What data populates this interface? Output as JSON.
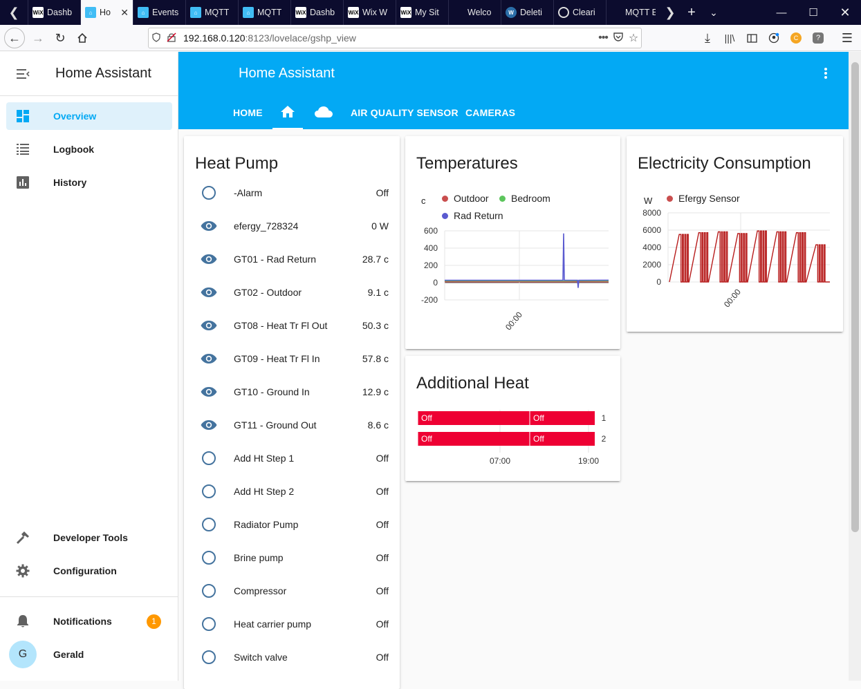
{
  "browser": {
    "tabs": [
      {
        "label": "Dashb",
        "icon": "wix-icon"
      },
      {
        "label": "Ho",
        "icon": "home-assistant-icon",
        "active": true
      },
      {
        "label": "Events",
        "icon": "home-assistant-icon"
      },
      {
        "label": "MQTT",
        "icon": "home-assistant-icon"
      },
      {
        "label": "MQTT",
        "icon": "home-assistant-icon"
      },
      {
        "label": "Dashb",
        "icon": "wix-icon"
      },
      {
        "label": "Wix W",
        "icon": "wix-icon"
      },
      {
        "label": "My Sit",
        "icon": "wix-icon"
      },
      {
        "label": "Welco",
        "icon": "blank-icon"
      },
      {
        "label": "Deleti",
        "icon": "wordpress-icon"
      },
      {
        "label": "Cleari",
        "icon": "browser-icon"
      },
      {
        "label": "MQTT Expl",
        "icon": "blank-icon"
      }
    ],
    "url": {
      "host": "192.168.0.120",
      "rest": ":8123/lovelace/gshp_view"
    }
  },
  "sidebar": {
    "title": "Home Assistant",
    "items": [
      {
        "label": "Overview",
        "icon": "dashboard-icon"
      },
      {
        "label": "Logbook",
        "icon": "logbook-icon"
      },
      {
        "label": "History",
        "icon": "history-icon"
      },
      {
        "label": "Developer Tools",
        "icon": "hammer-icon"
      },
      {
        "label": "Configuration",
        "icon": "gear-icon"
      },
      {
        "label": "Notifications",
        "icon": "bell-icon",
        "badge": "1"
      },
      {
        "label": "Gerald",
        "icon": "avatar",
        "initial": "G"
      }
    ]
  },
  "header": {
    "title": "Home Assistant",
    "tabs": [
      {
        "label": "HOME"
      },
      {
        "label": "",
        "icon": "home-icon",
        "active": true
      },
      {
        "label": "",
        "icon": "cloud-icon"
      },
      {
        "label": "AIR QUALITY SENSOR"
      },
      {
        "label": "CAMERAS"
      }
    ]
  },
  "heat_pump": {
    "title": "Heat Pump",
    "entities": [
      {
        "name": "-Alarm",
        "state": "Off",
        "icon": "circle-outline-icon"
      },
      {
        "name": "efergy_728324",
        "state": "0 W",
        "icon": "eye-icon"
      },
      {
        "name": "GT01 - Rad Return",
        "state": "28.7 c",
        "icon": "eye-icon"
      },
      {
        "name": "GT02 - Outdoor",
        "state": "9.1 c",
        "icon": "eye-icon"
      },
      {
        "name": "GT08 - Heat Tr Fl Out",
        "state": "50.3 c",
        "icon": "eye-icon"
      },
      {
        "name": "GT09 - Heat Tr Fl In",
        "state": "57.8 c",
        "icon": "eye-icon"
      },
      {
        "name": "GT10 - Ground In",
        "state": "12.9 c",
        "icon": "eye-icon"
      },
      {
        "name": "GT11 - Ground Out",
        "state": "8.6 c",
        "icon": "eye-icon"
      },
      {
        "name": "Add Ht Step 1",
        "state": "Off",
        "icon": "circle-outline-icon"
      },
      {
        "name": "Add Ht Step 2",
        "state": "Off",
        "icon": "circle-outline-icon"
      },
      {
        "name": "Radiator Pump",
        "state": "Off",
        "icon": "circle-outline-icon"
      },
      {
        "name": "Brine pump",
        "state": "Off",
        "icon": "circle-outline-icon"
      },
      {
        "name": "Compressor",
        "state": "Off",
        "icon": "circle-outline-icon"
      },
      {
        "name": "Heat carrier pump",
        "state": "Off",
        "icon": "circle-outline-icon"
      },
      {
        "name": "Switch valve",
        "state": "Off",
        "icon": "circle-outline-icon"
      }
    ]
  },
  "temperatures": {
    "title": "Temperatures",
    "unit": "c",
    "legend": [
      {
        "name": "Outdoor",
        "color": "#c94e4e"
      },
      {
        "name": "Bedroom",
        "color": "#5cc55c"
      },
      {
        "name": "Rad Return",
        "color": "#5a5ad0"
      }
    ],
    "y_ticks": [
      "600",
      "400",
      "200",
      "0",
      "-200"
    ],
    "x_tick": "00:00"
  },
  "electricity": {
    "title": "Electricity Consumption",
    "unit": "W",
    "legend": [
      {
        "name": "Efergy Sensor",
        "color": "#c94e4e"
      }
    ],
    "y_ticks": [
      "8000",
      "6000",
      "4000",
      "2000",
      "0"
    ],
    "x_tick": "00:00"
  },
  "additional_heat": {
    "title": "Additional Heat",
    "rows": [
      {
        "segments": [
          "Off",
          "Off"
        ],
        "label": "1"
      },
      {
        "segments": [
          "Off",
          "Off"
        ],
        "label": "2"
      }
    ],
    "x_ticks": [
      "07:00",
      "19:00"
    ],
    "bar_color": "#ee0033"
  },
  "chart_data": [
    {
      "type": "line",
      "title": "Temperatures",
      "ylabel": "c",
      "ylim": [
        -200,
        600
      ],
      "x_tick_labels": [
        "00:00"
      ],
      "series": [
        {
          "name": "Outdoor",
          "values": [
            10,
            9,
            9,
            10,
            9
          ]
        },
        {
          "name": "Bedroom",
          "values": [
            21,
            21,
            20,
            21,
            21
          ]
        },
        {
          "name": "Rad Return",
          "values": [
            28,
            28,
            570,
            -60,
            29
          ]
        }
      ]
    },
    {
      "type": "line",
      "title": "Electricity Consumption",
      "ylabel": "W",
      "ylim": [
        0,
        8000
      ],
      "x_tick_labels": [
        "00:00"
      ],
      "series": [
        {
          "name": "Efergy Sensor",
          "values": [
            0,
            5500,
            0,
            5700,
            0,
            5800,
            0,
            5600,
            0,
            5900,
            0,
            5800,
            0,
            5700,
            0,
            4300,
            0
          ]
        }
      ]
    }
  ]
}
